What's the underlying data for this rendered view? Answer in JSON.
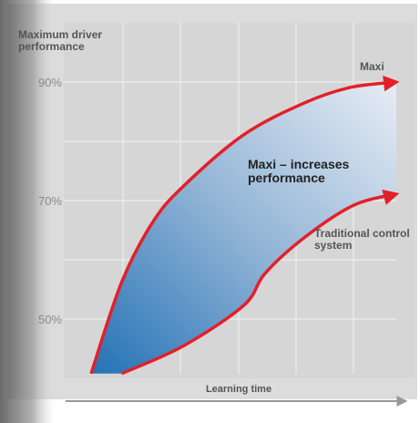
{
  "chart_data": {
    "type": "line",
    "y_label": "Maximum driver performance",
    "x_label": "Learning time",
    "annotation": "Maxi – increases performance",
    "xlim": [
      0,
      10
    ],
    "ylim": [
      40,
      100
    ],
    "yticks": [
      {
        "value": 50,
        "label": "50%"
      },
      {
        "value": 70,
        "label": "70%"
      },
      {
        "value": 90,
        "label": "90%"
      }
    ],
    "grid": true,
    "series": [
      {
        "name": "Maxi",
        "color": "#e3202a",
        "x": [
          0,
          1,
          2,
          3,
          5,
          7,
          8.5,
          10
        ],
        "values": [
          40.8,
          56.2,
          66.2,
          72.3,
          81.1,
          86.5,
          89.1,
          90
        ]
      },
      {
        "name": "Traditional control system",
        "color": "#e3202a",
        "x": [
          1,
          3,
          5,
          5.7,
          7,
          8.6,
          10
        ],
        "values": [
          40.8,
          45.4,
          52.3,
          57.7,
          63.8,
          69.2,
          71.1
        ]
      }
    ]
  }
}
